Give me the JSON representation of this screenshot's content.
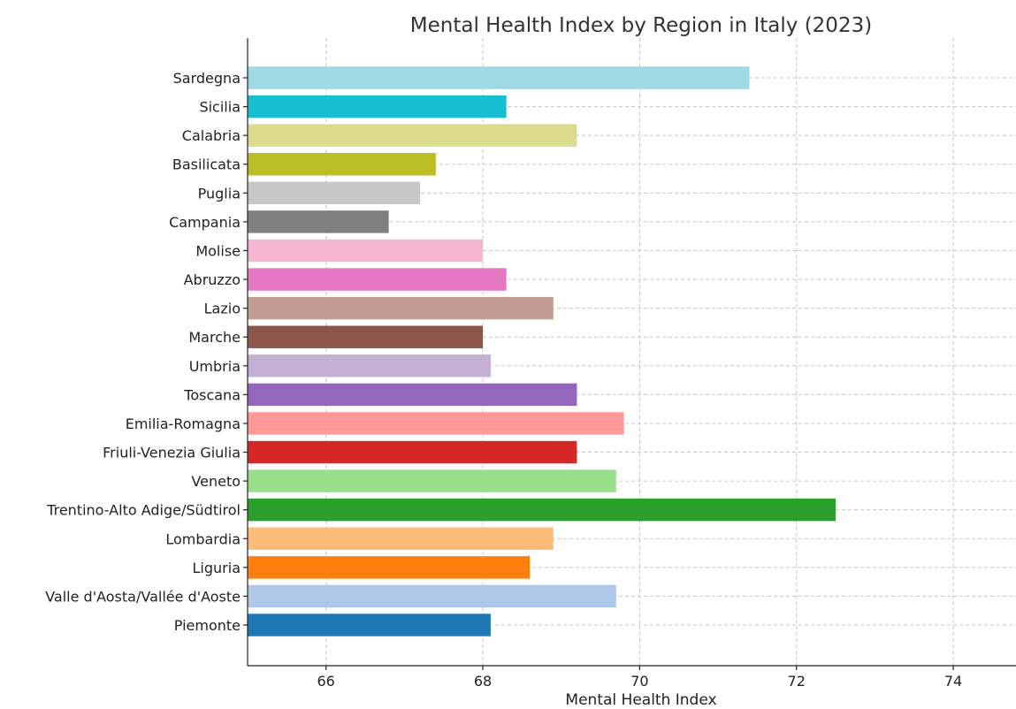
{
  "chart_data": {
    "type": "bar",
    "orientation": "horizontal",
    "title": "Mental Health Index by Region in Italy (2023)",
    "xlabel": "Mental Health Index",
    "ylabel": "",
    "xlim": [
      65,
      74.8
    ],
    "xticks": [
      66,
      68,
      70,
      72,
      74
    ],
    "grid": true,
    "categories": [
      "Piemonte",
      "Valle d'Aosta/Vallée d'Aoste",
      "Liguria",
      "Lombardia",
      "Trentino-Alto Adige/Südtirol",
      "Veneto",
      "Friuli-Venezia Giulia",
      "Emilia-Romagna",
      "Toscana",
      "Umbria",
      "Marche",
      "Lazio",
      "Abruzzo",
      "Molise",
      "Campania",
      "Puglia",
      "Basilicata",
      "Calabria",
      "Sicilia",
      "Sardegna"
    ],
    "values": [
      68.1,
      69.7,
      68.6,
      68.9,
      72.5,
      69.7,
      69.2,
      69.8,
      69.2,
      68.1,
      68.0,
      68.9,
      68.3,
      68.0,
      66.8,
      67.2,
      67.4,
      69.2,
      68.3,
      71.4
    ],
    "colors": [
      "#1f77b4",
      "#aec7e8",
      "#ff7f0e",
      "#ffbb78",
      "#2ca02c",
      "#98df8a",
      "#d62728",
      "#ff9896",
      "#9467bd",
      "#c5b0d5",
      "#8c564b",
      "#c49c94",
      "#e377c2",
      "#f7b6d2",
      "#7f7f7f",
      "#c7c7c7",
      "#bcbd22",
      "#dbdb8d",
      "#17becf",
      "#9edae5"
    ]
  }
}
